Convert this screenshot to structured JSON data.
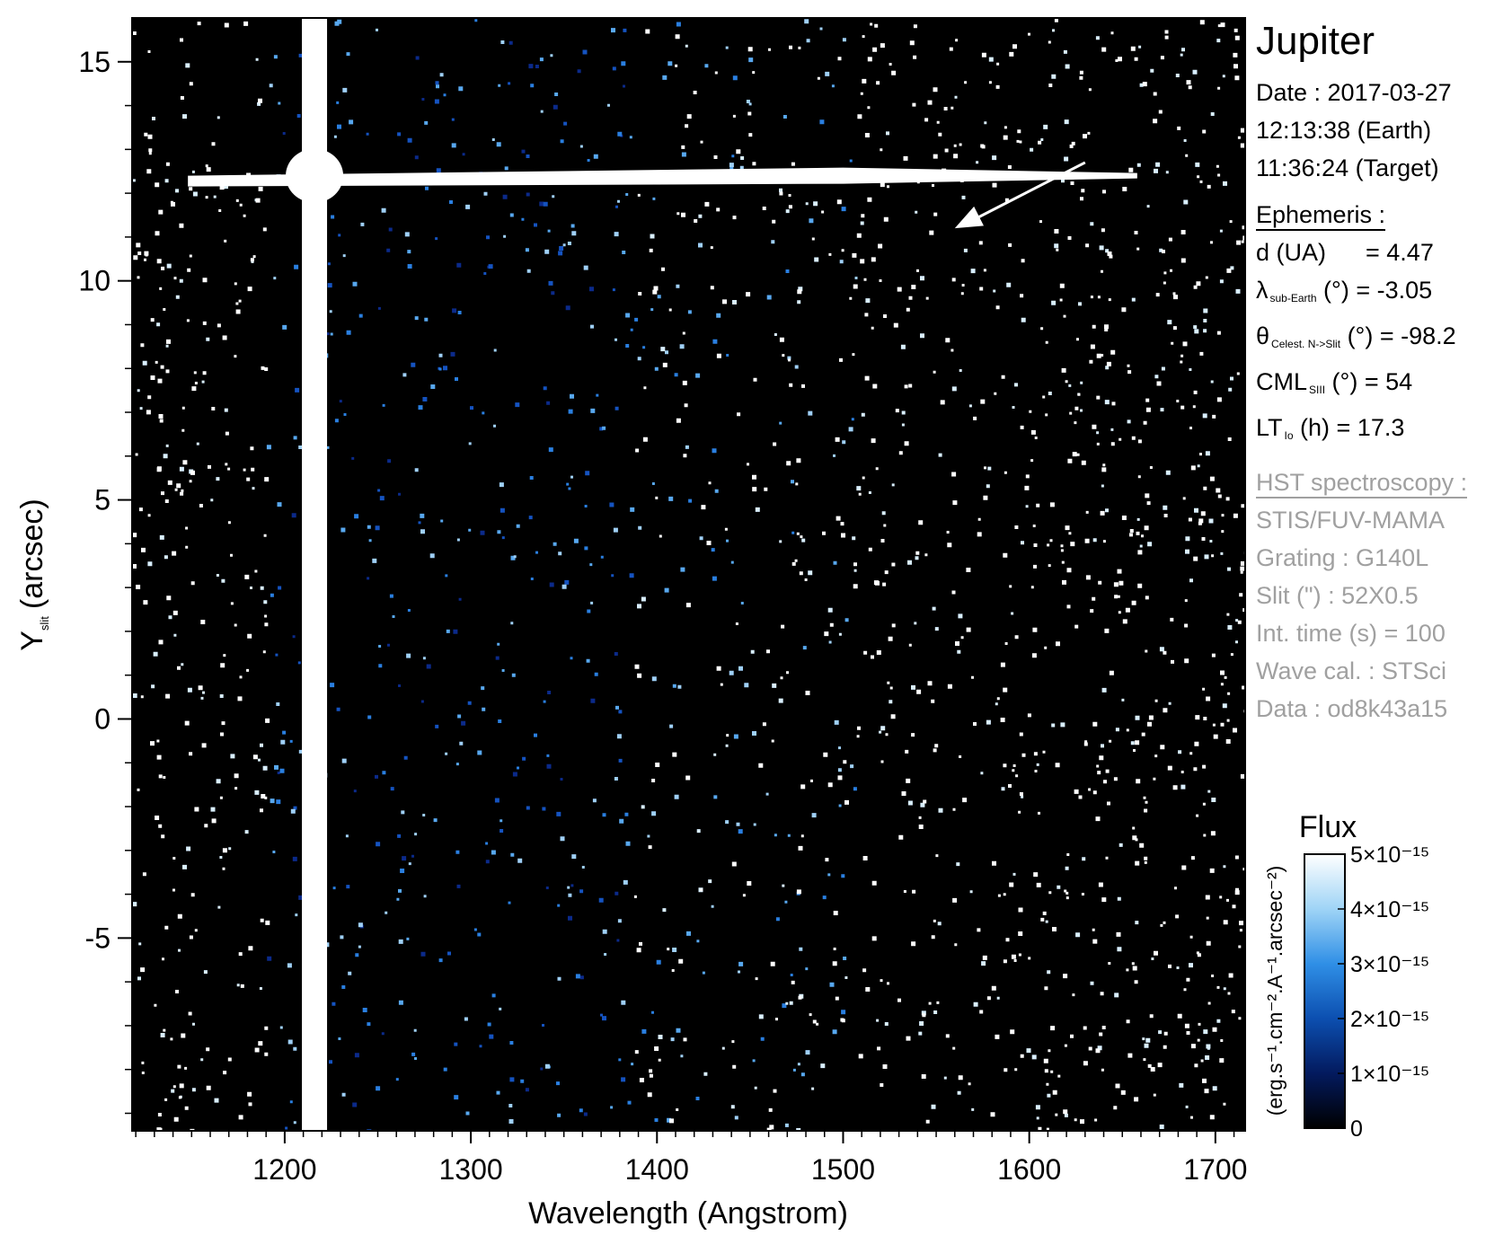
{
  "chart_data": {
    "type": "heatmap",
    "title": "",
    "xlabel": "Wavelength (Angstrom)",
    "ylabel_main": "Y",
    "ylabel_sub": "slit",
    "ylabel_unit": "(arcsec)",
    "xlim": [
      1118,
      1716
    ],
    "ylim": [
      -9.4,
      16.0
    ],
    "x_ticks": [
      1200,
      1300,
      1400,
      1500,
      1600,
      1700
    ],
    "y_ticks": [
      -5,
      0,
      5,
      10,
      15
    ],
    "x_tick_labels": [
      "1200",
      "1300",
      "1400",
      "1500",
      "1600",
      "1700"
    ],
    "y_tick_labels": [
      "-5",
      "0",
      "5",
      "10",
      "15"
    ],
    "features": {
      "lyman_alpha_column_wavelength": 1216,
      "slit_emission_row_y": 12.4,
      "slit_emission_x_range": [
        1148,
        1658
      ],
      "arrow_from": [
        1630,
        12.7
      ],
      "arrow_to": [
        1560,
        11.2
      ]
    },
    "colorbar": {
      "title": "Flux",
      "unit_label": "(erg.s⁻¹.cm⁻².A⁻¹.arcsec⁻²)",
      "range": [
        0,
        5e-15
      ],
      "ticks": [
        0,
        1e-15,
        2e-15,
        3e-15,
        4e-15,
        5e-15
      ],
      "tick_labels": [
        "0",
        "1×10⁻¹⁵",
        "2×10⁻¹⁵",
        "3×10⁻¹⁵",
        "4×10⁻¹⁵",
        "5×10⁻¹⁵"
      ],
      "colors": [
        "#000000",
        "#031a5e",
        "#0c4fb0",
        "#2f8fe6",
        "#9fd4f6",
        "#ffffff"
      ]
    }
  },
  "panel": {
    "title": "Jupiter",
    "date_line": "Date : 2017-03-27",
    "earth_time": "12:13:38 (Earth)",
    "target_time": "11:36:24 (Target)",
    "ephemeris_title": "Ephemeris :",
    "d_label": "d (UA)",
    "d_value": "= 4.47",
    "lambda_sym": "λ",
    "lambda_sub": "sub-Earth",
    "lambda_rest": " (°)  = -3.05",
    "theta_sym": "θ",
    "theta_sub": "Celest. N->Slit",
    "theta_rest": " (°) = -98.2",
    "cml_sym": "CML",
    "cml_sub": "SIII",
    "cml_rest": " (°) = 54",
    "lt_sym": "LT",
    "lt_sub": "Io",
    "lt_rest": " (h) = 17.3",
    "hst_title": "HST spectroscopy :",
    "instrument": "STIS/FUV-MAMA",
    "grating": "Grating : G140L",
    "slit": "Slit (\") : 52X0.5",
    "int_time": "Int. time (s) = 100",
    "wave_cal": "Wave cal. : STSci",
    "data_id": "Data : od8k43a15"
  }
}
